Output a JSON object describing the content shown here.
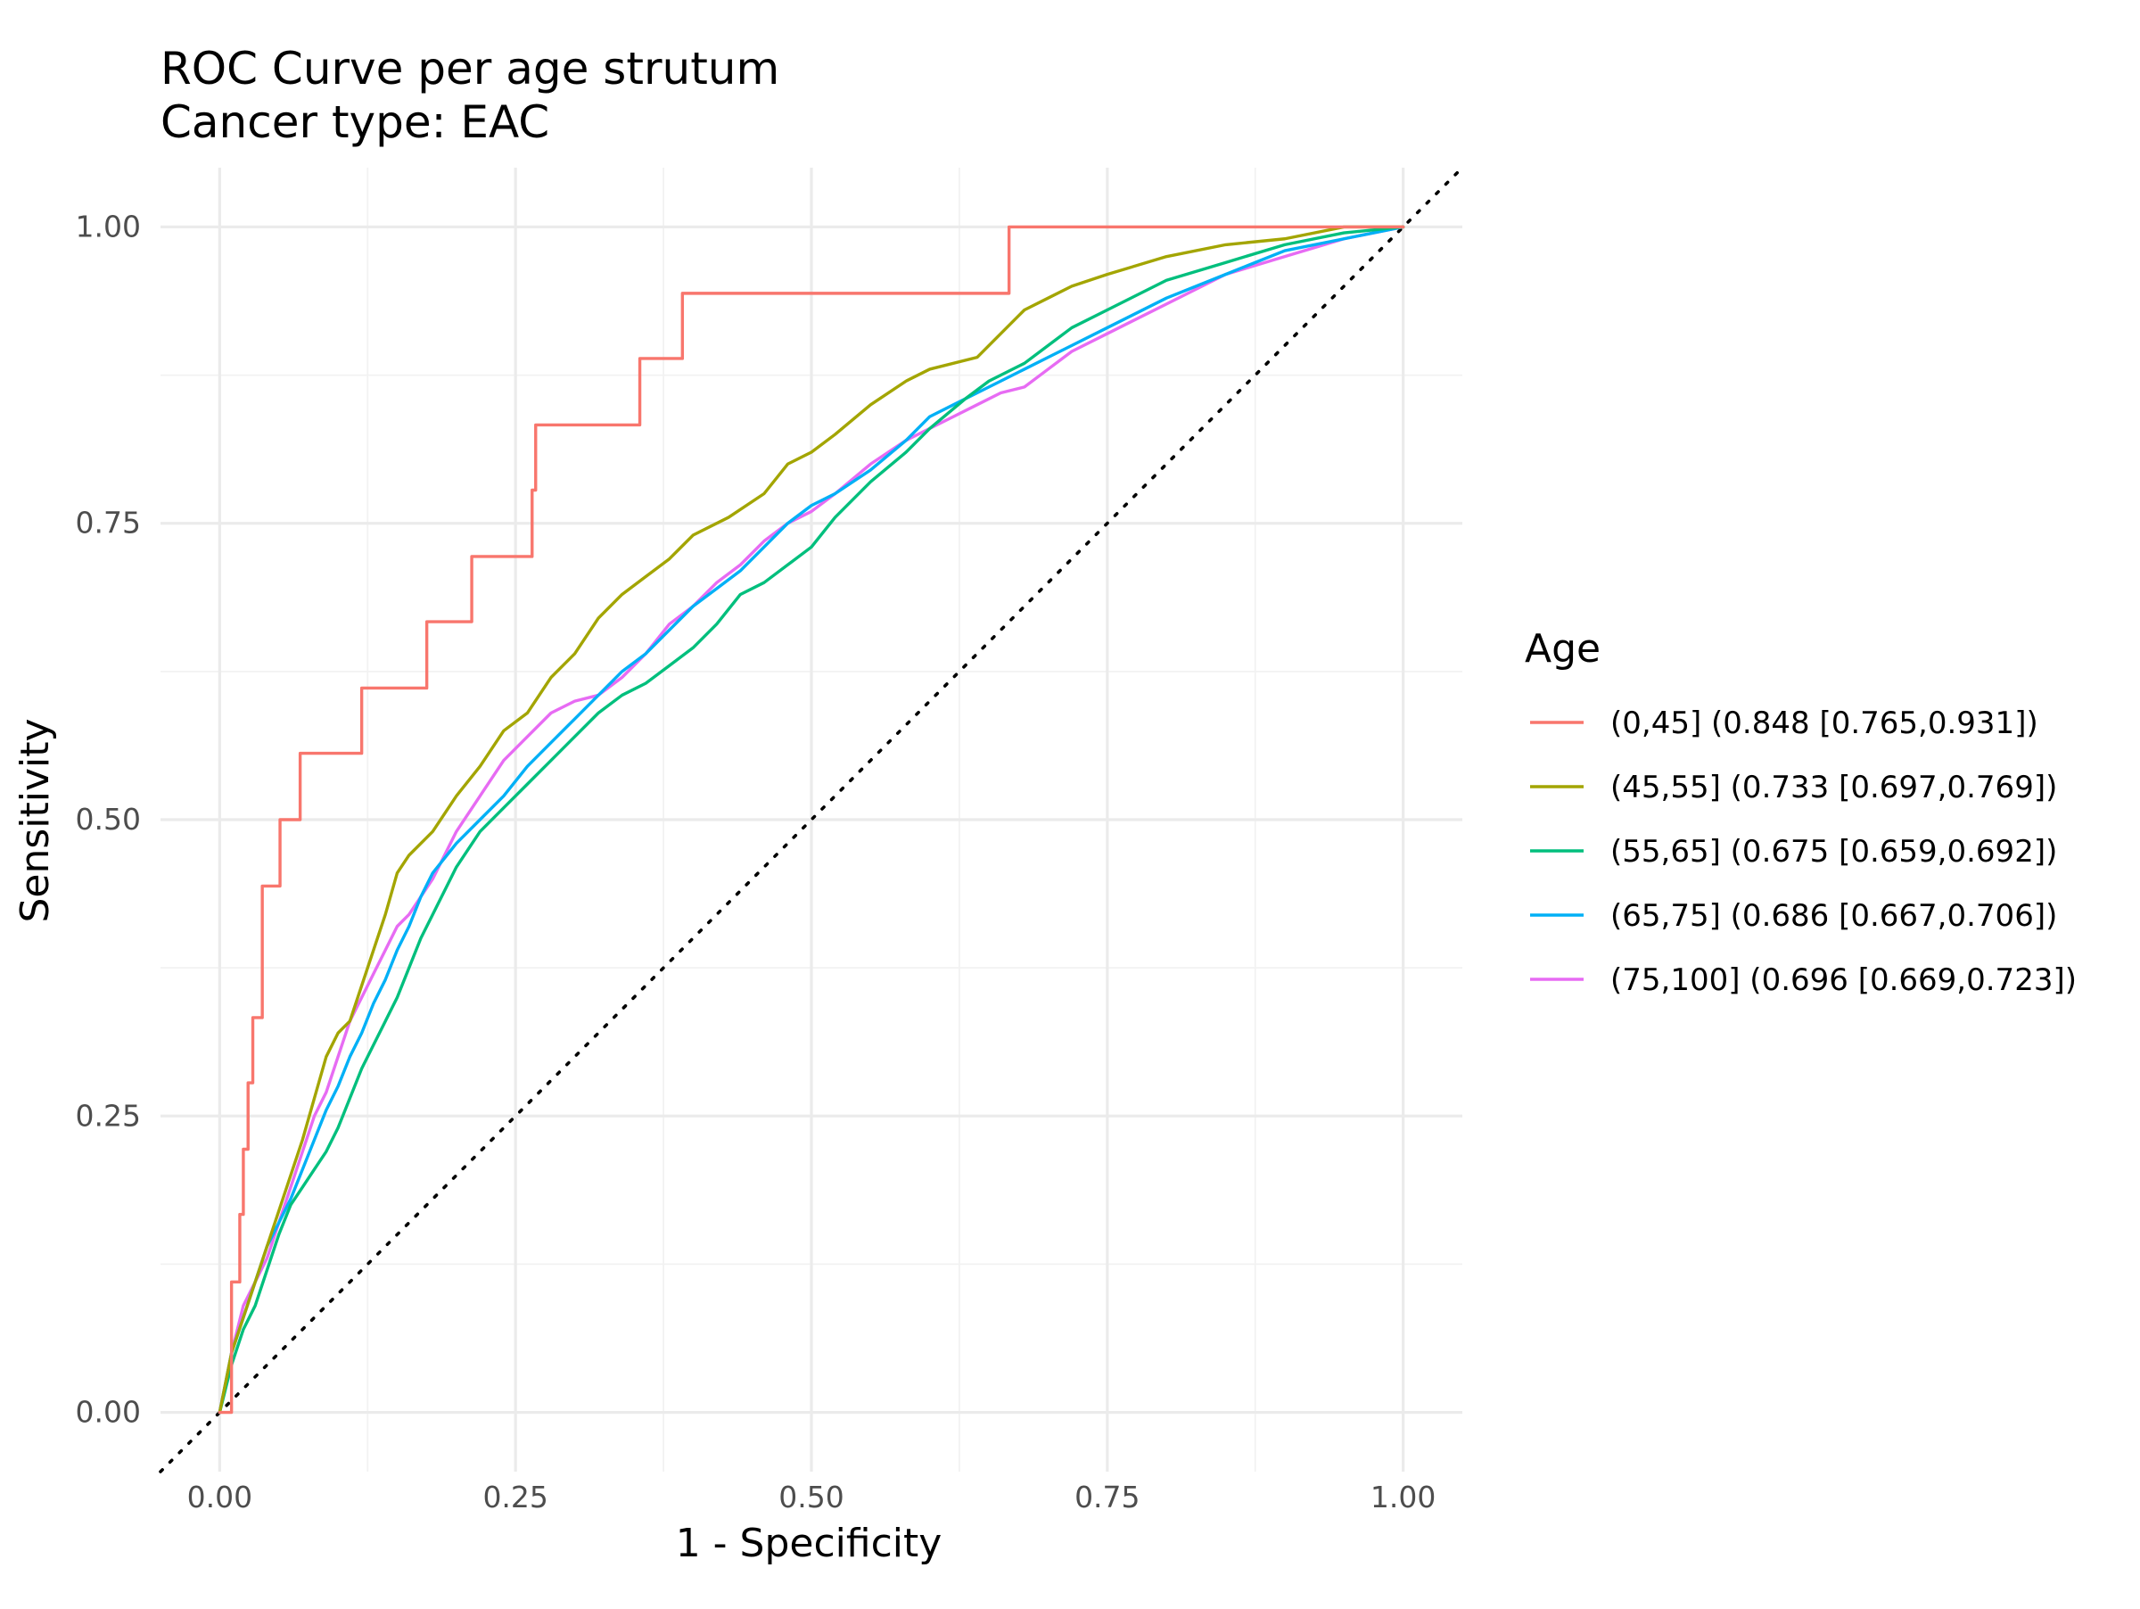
{
  "chart_data": {
    "type": "line",
    "title": "ROC Curve per age strutum",
    "subtitle": "Cancer type: EAC",
    "xlabel": "1 - Specificity",
    "ylabel": "Sensitivity",
    "xlim": [
      -0.05,
      1.05
    ],
    "ylim": [
      -0.05,
      1.05
    ],
    "x_ticks": [
      0,
      0.25,
      0.5,
      0.75,
      1
    ],
    "x_tick_labels": [
      "0.00",
      "0.25",
      "0.50",
      "0.75",
      "1.00"
    ],
    "y_ticks": [
      0,
      0.25,
      0.5,
      0.75,
      1
    ],
    "y_tick_labels": [
      "0.00",
      "0.25",
      "0.50",
      "0.75",
      "1.00"
    ],
    "grid": true,
    "legend": {
      "title": "Age",
      "position": "right"
    },
    "reference_line": {
      "style": "dotted",
      "color": "#000000",
      "from": [
        -0.05,
        -0.05
      ],
      "to": [
        1.05,
        1.05
      ]
    },
    "series": [
      {
        "name": "(0,45] (0.848 [0.765,0.931])",
        "color": "#F8766D",
        "step": true,
        "points": [
          [
            0,
            0
          ],
          [
            0.01,
            0
          ],
          [
            0.01,
            0.11
          ],
          [
            0.017,
            0.11
          ],
          [
            0.017,
            0.167
          ],
          [
            0.02,
            0.167
          ],
          [
            0.02,
            0.222
          ],
          [
            0.024,
            0.222
          ],
          [
            0.024,
            0.278
          ],
          [
            0.028,
            0.278
          ],
          [
            0.028,
            0.333
          ],
          [
            0.036,
            0.333
          ],
          [
            0.036,
            0.444
          ],
          [
            0.051,
            0.444
          ],
          [
            0.051,
            0.5
          ],
          [
            0.068,
            0.5
          ],
          [
            0.068,
            0.556
          ],
          [
            0.12,
            0.556
          ],
          [
            0.12,
            0.611
          ],
          [
            0.175,
            0.611
          ],
          [
            0.175,
            0.667
          ],
          [
            0.213,
            0.667
          ],
          [
            0.213,
            0.722
          ],
          [
            0.264,
            0.722
          ],
          [
            0.264,
            0.778
          ],
          [
            0.267,
            0.778
          ],
          [
            0.267,
            0.833
          ],
          [
            0.355,
            0.833
          ],
          [
            0.355,
            0.889
          ],
          [
            0.391,
            0.889
          ],
          [
            0.391,
            0.944
          ],
          [
            0.667,
            0.944
          ],
          [
            0.667,
            1
          ],
          [
            1,
            1
          ]
        ]
      },
      {
        "name": "(45,55] (0.733 [0.697,0.769])",
        "color": "#A3A500",
        "step": false,
        "points": [
          [
            0,
            0
          ],
          [
            0.01,
            0.05
          ],
          [
            0.03,
            0.11
          ],
          [
            0.04,
            0.14
          ],
          [
            0.05,
            0.17
          ],
          [
            0.06,
            0.2
          ],
          [
            0.07,
            0.23
          ],
          [
            0.08,
            0.265
          ],
          [
            0.09,
            0.3
          ],
          [
            0.1,
            0.32
          ],
          [
            0.11,
            0.33
          ],
          [
            0.12,
            0.36
          ],
          [
            0.13,
            0.39
          ],
          [
            0.14,
            0.42
          ],
          [
            0.15,
            0.455
          ],
          [
            0.16,
            0.47
          ],
          [
            0.18,
            0.49
          ],
          [
            0.2,
            0.52
          ],
          [
            0.22,
            0.545
          ],
          [
            0.24,
            0.575
          ],
          [
            0.26,
            0.59
          ],
          [
            0.28,
            0.62
          ],
          [
            0.3,
            0.64
          ],
          [
            0.32,
            0.67
          ],
          [
            0.34,
            0.69
          ],
          [
            0.36,
            0.705
          ],
          [
            0.38,
            0.72
          ],
          [
            0.4,
            0.74
          ],
          [
            0.43,
            0.755
          ],
          [
            0.46,
            0.775
          ],
          [
            0.48,
            0.8
          ],
          [
            0.5,
            0.81
          ],
          [
            0.52,
            0.825
          ],
          [
            0.55,
            0.85
          ],
          [
            0.58,
            0.87
          ],
          [
            0.6,
            0.88
          ],
          [
            0.64,
            0.89
          ],
          [
            0.66,
            0.91
          ],
          [
            0.68,
            0.93
          ],
          [
            0.7,
            0.94
          ],
          [
            0.72,
            0.95
          ],
          [
            0.75,
            0.96
          ],
          [
            0.8,
            0.975
          ],
          [
            0.85,
            0.985
          ],
          [
            0.9,
            0.99
          ],
          [
            0.95,
            1
          ],
          [
            1,
            1
          ]
        ]
      },
      {
        "name": "(55,65] (0.675 [0.659,0.692])",
        "color": "#00BF7D",
        "step": false,
        "points": [
          [
            0,
            0
          ],
          [
            0.01,
            0.04
          ],
          [
            0.02,
            0.07
          ],
          [
            0.03,
            0.09
          ],
          [
            0.04,
            0.12
          ],
          [
            0.05,
            0.15
          ],
          [
            0.06,
            0.175
          ],
          [
            0.07,
            0.19
          ],
          [
            0.08,
            0.205
          ],
          [
            0.09,
            0.22
          ],
          [
            0.1,
            0.24
          ],
          [
            0.11,
            0.265
          ],
          [
            0.12,
            0.29
          ],
          [
            0.13,
            0.31
          ],
          [
            0.14,
            0.33
          ],
          [
            0.15,
            0.35
          ],
          [
            0.16,
            0.375
          ],
          [
            0.17,
            0.4
          ],
          [
            0.18,
            0.42
          ],
          [
            0.19,
            0.44
          ],
          [
            0.2,
            0.46
          ],
          [
            0.22,
            0.49
          ],
          [
            0.24,
            0.51
          ],
          [
            0.26,
            0.53
          ],
          [
            0.28,
            0.55
          ],
          [
            0.3,
            0.57
          ],
          [
            0.32,
            0.59
          ],
          [
            0.34,
            0.605
          ],
          [
            0.36,
            0.615
          ],
          [
            0.38,
            0.63
          ],
          [
            0.4,
            0.645
          ],
          [
            0.42,
            0.665
          ],
          [
            0.44,
            0.69
          ],
          [
            0.46,
            0.7
          ],
          [
            0.48,
            0.715
          ],
          [
            0.5,
            0.73
          ],
          [
            0.52,
            0.755
          ],
          [
            0.55,
            0.785
          ],
          [
            0.58,
            0.81
          ],
          [
            0.6,
            0.83
          ],
          [
            0.63,
            0.855
          ],
          [
            0.65,
            0.87
          ],
          [
            0.68,
            0.885
          ],
          [
            0.7,
            0.9
          ],
          [
            0.72,
            0.915
          ],
          [
            0.75,
            0.93
          ],
          [
            0.8,
            0.955
          ],
          [
            0.85,
            0.97
          ],
          [
            0.9,
            0.985
          ],
          [
            0.95,
            0.995
          ],
          [
            1,
            1
          ]
        ]
      },
      {
        "name": "(65,75] (0.686 [0.667,0.706])",
        "color": "#00B0F6",
        "step": false,
        "points": [
          [
            0,
            0
          ],
          [
            0.01,
            0.05
          ],
          [
            0.02,
            0.08
          ],
          [
            0.03,
            0.11
          ],
          [
            0.04,
            0.14
          ],
          [
            0.05,
            0.16
          ],
          [
            0.06,
            0.18
          ],
          [
            0.07,
            0.205
          ],
          [
            0.08,
            0.23
          ],
          [
            0.09,
            0.255
          ],
          [
            0.1,
            0.275
          ],
          [
            0.11,
            0.3
          ],
          [
            0.12,
            0.32
          ],
          [
            0.13,
            0.345
          ],
          [
            0.14,
            0.365
          ],
          [
            0.15,
            0.39
          ],
          [
            0.16,
            0.41
          ],
          [
            0.17,
            0.435
          ],
          [
            0.18,
            0.455
          ],
          [
            0.2,
            0.48
          ],
          [
            0.22,
            0.5
          ],
          [
            0.24,
            0.52
          ],
          [
            0.26,
            0.545
          ],
          [
            0.28,
            0.565
          ],
          [
            0.3,
            0.585
          ],
          [
            0.32,
            0.605
          ],
          [
            0.34,
            0.625
          ],
          [
            0.36,
            0.64
          ],
          [
            0.38,
            0.66
          ],
          [
            0.4,
            0.68
          ],
          [
            0.42,
            0.695
          ],
          [
            0.44,
            0.71
          ],
          [
            0.46,
            0.73
          ],
          [
            0.48,
            0.75
          ],
          [
            0.5,
            0.765
          ],
          [
            0.52,
            0.775
          ],
          [
            0.55,
            0.795
          ],
          [
            0.58,
            0.82
          ],
          [
            0.6,
            0.84
          ],
          [
            0.62,
            0.85
          ],
          [
            0.64,
            0.86
          ],
          [
            0.66,
            0.87
          ],
          [
            0.68,
            0.88
          ],
          [
            0.7,
            0.89
          ],
          [
            0.72,
            0.9
          ],
          [
            0.75,
            0.915
          ],
          [
            0.8,
            0.94
          ],
          [
            0.85,
            0.96
          ],
          [
            0.9,
            0.98
          ],
          [
            0.95,
            0.99
          ],
          [
            1,
            1
          ]
        ]
      },
      {
        "name": "(75,100] (0.696 [0.669,0.723])",
        "color": "#E76BF3",
        "step": false,
        "points": [
          [
            0,
            0
          ],
          [
            0.01,
            0.05
          ],
          [
            0.02,
            0.09
          ],
          [
            0.03,
            0.11
          ],
          [
            0.04,
            0.13
          ],
          [
            0.05,
            0.16
          ],
          [
            0.06,
            0.19
          ],
          [
            0.07,
            0.22
          ],
          [
            0.08,
            0.25
          ],
          [
            0.09,
            0.27
          ],
          [
            0.1,
            0.3
          ],
          [
            0.11,
            0.33
          ],
          [
            0.12,
            0.35
          ],
          [
            0.13,
            0.37
          ],
          [
            0.14,
            0.39
          ],
          [
            0.15,
            0.41
          ],
          [
            0.16,
            0.42
          ],
          [
            0.18,
            0.45
          ],
          [
            0.2,
            0.49
          ],
          [
            0.22,
            0.52
          ],
          [
            0.24,
            0.55
          ],
          [
            0.26,
            0.57
          ],
          [
            0.28,
            0.59
          ],
          [
            0.3,
            0.6
          ],
          [
            0.32,
            0.605
          ],
          [
            0.34,
            0.62
          ],
          [
            0.36,
            0.64
          ],
          [
            0.38,
            0.665
          ],
          [
            0.4,
            0.68
          ],
          [
            0.42,
            0.7
          ],
          [
            0.44,
            0.715
          ],
          [
            0.46,
            0.735
          ],
          [
            0.48,
            0.75
          ],
          [
            0.5,
            0.76
          ],
          [
            0.52,
            0.775
          ],
          [
            0.55,
            0.8
          ],
          [
            0.58,
            0.82
          ],
          [
            0.6,
            0.83
          ],
          [
            0.62,
            0.84
          ],
          [
            0.64,
            0.85
          ],
          [
            0.66,
            0.86
          ],
          [
            0.68,
            0.865
          ],
          [
            0.7,
            0.88
          ],
          [
            0.72,
            0.895
          ],
          [
            0.75,
            0.91
          ],
          [
            0.8,
            0.935
          ],
          [
            0.85,
            0.96
          ],
          [
            0.9,
            0.975
          ],
          [
            0.95,
            0.99
          ],
          [
            1,
            1
          ]
        ]
      }
    ]
  }
}
